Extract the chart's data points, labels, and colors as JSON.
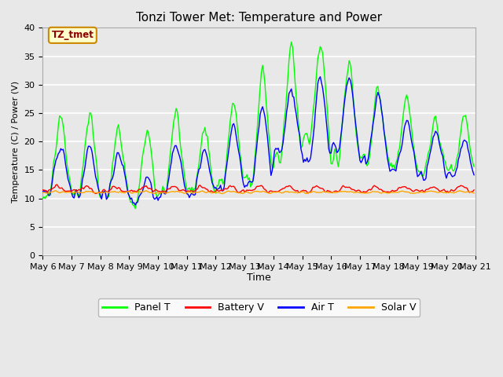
{
  "title": "Tonzi Tower Met: Temperature and Power",
  "xlabel": "Time",
  "ylabel": "Temperature (C) / Power (V)",
  "annotation": "TZ_tmet",
  "annotation_color": "#8B0000",
  "annotation_bg": "#FFFFCC",
  "annotation_border": "#CC8800",
  "ylim": [
    0,
    40
  ],
  "yticks": [
    0,
    5,
    10,
    15,
    20,
    25,
    30,
    35,
    40
  ],
  "xtick_labels": [
    "May 6",
    "May 7",
    "May 8",
    "May 9",
    "May 10",
    "May 11",
    "May 12",
    "May 13",
    "May 14",
    "May 15",
    "May 16",
    "May 17",
    "May 18",
    "May 19",
    "May 20",
    "May 21"
  ],
  "bg_color": "#E8E8E8",
  "plot_bg": "#E8E8E8",
  "grid_color": "#FFFFFF",
  "panel_t_color": "#00FF00",
  "battery_v_color": "#FF0000",
  "air_t_color": "#0000FF",
  "solar_v_color": "#FFA500",
  "lw": 1.0,
  "legend_ncol": 4,
  "figsize": [
    6.4,
    4.8
  ],
  "dpi": 100
}
